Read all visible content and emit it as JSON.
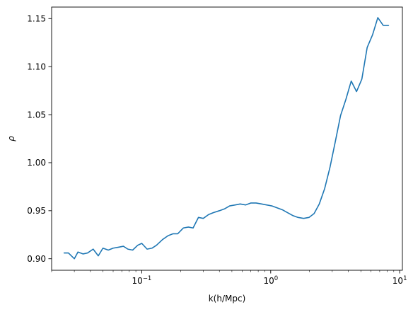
{
  "chart_data": {
    "type": "line",
    "title": "",
    "xlabel": "k(h/Mpc)",
    "ylabel": "ρ",
    "xscale": "log",
    "xlim": [
      0.02,
      10.5
    ],
    "ylim": [
      0.888,
      1.162
    ],
    "grid": false,
    "legend": "none",
    "line_color": "#1f77b4",
    "x_ticks": [
      {
        "value": 0.1,
        "base": "10",
        "exp": "−1"
      },
      {
        "value": 1,
        "base": "10",
        "exp": "0"
      },
      {
        "value": 10,
        "base": "10",
        "exp": "1"
      }
    ],
    "y_ticks": [
      {
        "value": 0.9,
        "label": "0.90"
      },
      {
        "value": 0.95,
        "label": "0.95"
      },
      {
        "value": 1.0,
        "label": "1.00"
      },
      {
        "value": 1.05,
        "label": "1.05"
      },
      {
        "value": 1.1,
        "label": "1.10"
      },
      {
        "value": 1.15,
        "label": "1.15"
      }
    ],
    "series": [
      {
        "x": [
          0.025,
          0.027,
          0.03,
          0.032,
          0.035,
          0.038,
          0.042,
          0.046,
          0.05,
          0.055,
          0.06,
          0.066,
          0.072,
          0.078,
          0.085,
          0.093,
          0.1,
          0.11,
          0.12,
          0.13,
          0.145,
          0.16,
          0.175,
          0.19,
          0.21,
          0.23,
          0.25,
          0.275,
          0.3,
          0.33,
          0.36,
          0.4,
          0.44,
          0.48,
          0.53,
          0.58,
          0.64,
          0.7,
          0.77,
          0.85,
          0.93,
          1.02,
          1.12,
          1.23,
          1.35,
          1.48,
          1.63,
          1.8,
          1.98,
          2.17,
          2.38,
          2.62,
          2.88,
          3.17,
          3.48,
          3.83,
          4.21,
          4.63,
          5.09,
          5.6,
          6.16,
          6.77,
          7.45,
          8.2
        ],
        "y": [
          0.906,
          0.906,
          0.9,
          0.907,
          0.905,
          0.906,
          0.91,
          0.903,
          0.911,
          0.909,
          0.911,
          0.912,
          0.913,
          0.91,
          0.909,
          0.914,
          0.916,
          0.91,
          0.911,
          0.914,
          0.92,
          0.924,
          0.926,
          0.926,
          0.932,
          0.933,
          0.932,
          0.943,
          0.942,
          0.946,
          0.948,
          0.95,
          0.952,
          0.955,
          0.956,
          0.957,
          0.956,
          0.958,
          0.958,
          0.957,
          0.956,
          0.955,
          0.953,
          0.951,
          0.948,
          0.945,
          0.943,
          0.942,
          0.943,
          0.947,
          0.957,
          0.973,
          0.995,
          1.022,
          1.049,
          1.066,
          1.085,
          1.074,
          1.087,
          1.12,
          1.133,
          1.151,
          1.143,
          1.143
        ]
      }
    ]
  }
}
